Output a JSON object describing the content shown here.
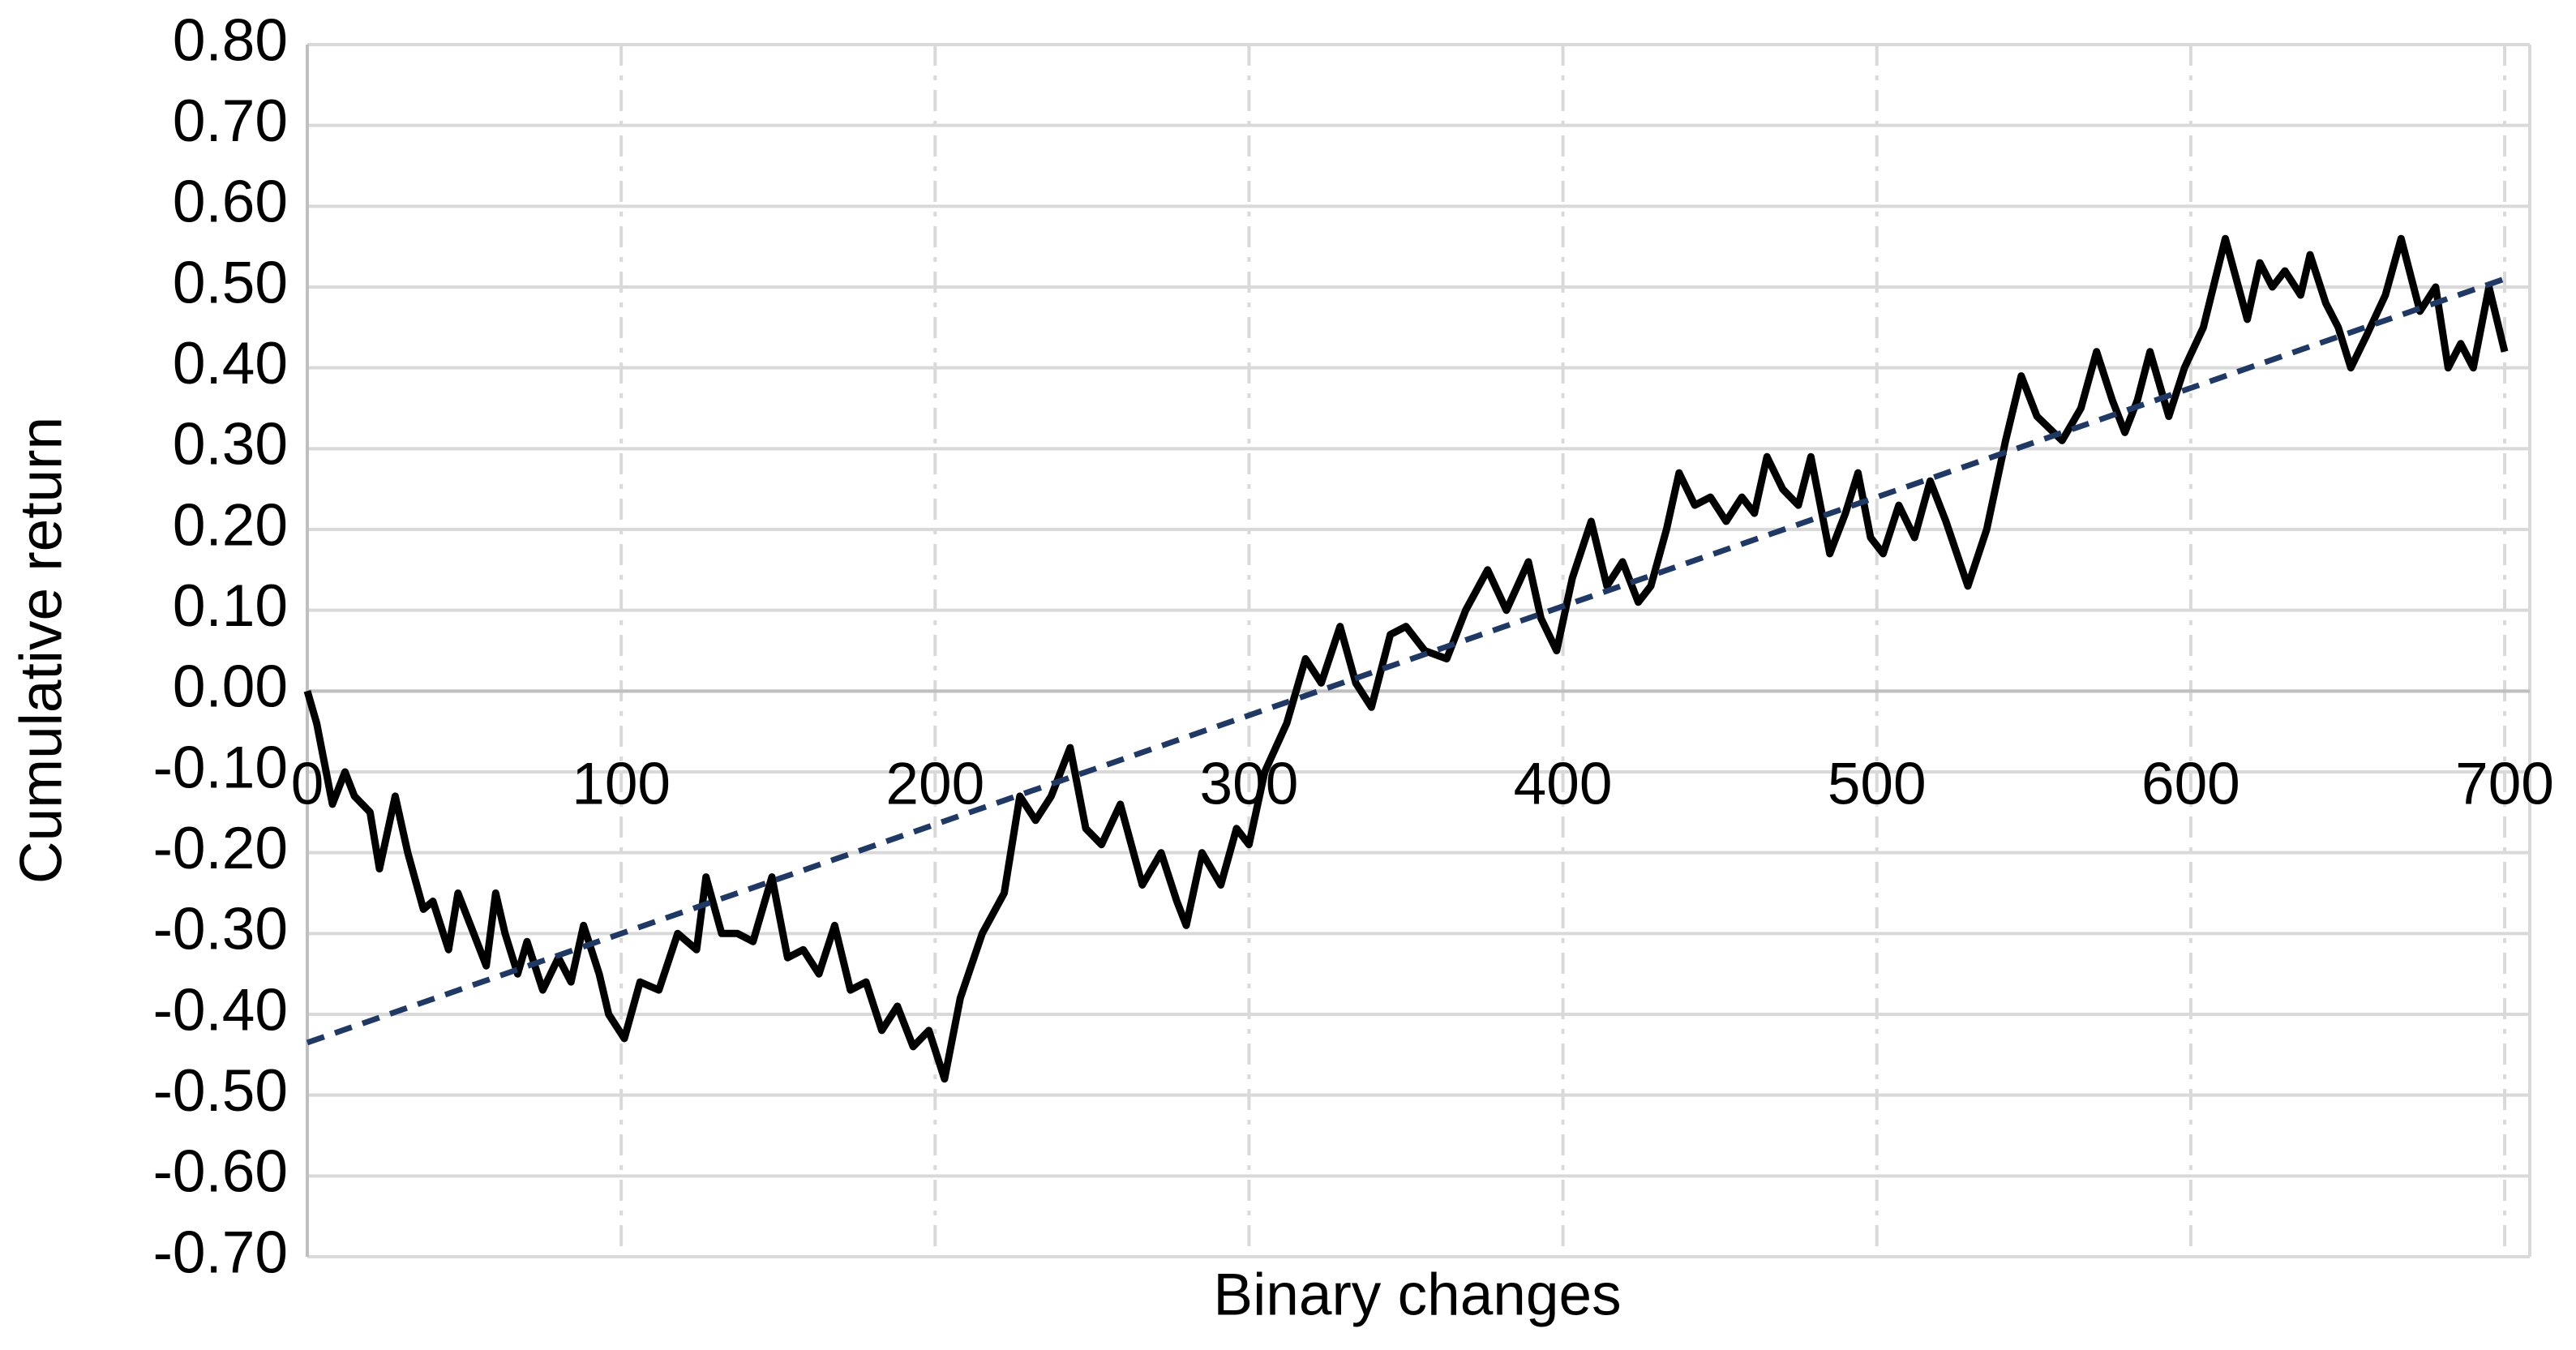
{
  "chart_data": {
    "type": "line",
    "x_label": "Binary changes",
    "y_label": "Cumulative return",
    "xlim": [
      0,
      708
    ],
    "ylim": [
      -0.7,
      0.8
    ],
    "xticks": [
      0,
      100,
      200,
      300,
      400,
      500,
      600,
      700
    ],
    "yticks": [
      {
        "value": 0.8,
        "label": "0.80"
      },
      {
        "value": 0.7,
        "label": "0.70"
      },
      {
        "value": 0.6,
        "label": "0.60"
      },
      {
        "value": 0.5,
        "label": "0.50"
      },
      {
        "value": 0.4,
        "label": "0.40"
      },
      {
        "value": 0.3,
        "label": "0.30"
      },
      {
        "value": 0.2,
        "label": "0.20"
      },
      {
        "value": 0.1,
        "label": "0.10"
      },
      {
        "value": 0,
        "label": "0.00"
      },
      {
        "value": -0.1,
        "label": "-0.10"
      },
      {
        "value": -0.2,
        "label": "-0.20"
      },
      {
        "value": -0.3,
        "label": "-0.30"
      },
      {
        "value": -0.4,
        "label": "-0.40"
      },
      {
        "value": -0.5,
        "label": "-0.50"
      },
      {
        "value": -0.6,
        "label": "-0.60"
      },
      {
        "value": -0.7,
        "label": "-0.70"
      }
    ],
    "grid": true,
    "series": [
      {
        "color": "#000000",
        "dashed": false,
        "x": [
          0,
          3,
          8,
          12,
          15,
          20,
          23,
          28,
          32,
          37,
          40,
          45,
          48,
          53,
          57,
          60,
          63,
          67,
          70,
          75,
          80,
          84,
          88,
          93,
          96,
          101,
          106,
          112,
          118,
          124,
          127,
          132,
          137,
          142,
          148,
          153,
          158,
          163,
          168,
          173,
          178,
          183,
          188,
          193,
          198,
          203,
          208,
          215,
          222,
          227,
          232,
          237,
          243,
          248,
          253,
          259,
          266,
          272,
          277,
          280,
          285,
          291,
          296,
          300,
          305,
          312,
          318,
          323,
          329,
          334,
          339,
          345,
          350,
          356,
          363,
          369,
          376,
          382,
          389,
          393,
          398,
          403,
          409,
          414,
          419,
          424,
          428,
          433,
          437,
          442,
          447,
          452,
          457,
          461,
          465,
          470,
          475,
          479,
          485,
          490,
          494,
          498,
          502,
          507,
          512,
          517,
          522,
          529,
          535,
          541,
          546,
          551,
          559,
          565,
          570,
          575,
          579,
          583,
          587,
          593,
          598,
          604,
          611,
          618,
          622,
          626,
          630,
          635,
          638,
          643,
          647,
          651,
          656,
          662,
          667,
          673,
          678,
          682,
          686,
          690,
          695,
          700
        ],
        "values": [
          0,
          -0.04,
          -0.14,
          -0.1,
          -0.13,
          -0.15,
          -0.22,
          -0.13,
          -0.2,
          -0.27,
          -0.26,
          -0.32,
          -0.25,
          -0.3,
          -0.34,
          -0.25,
          -0.3,
          -0.35,
          -0.31,
          -0.37,
          -0.33,
          -0.36,
          -0.29,
          -0.35,
          -0.4,
          -0.43,
          -0.36,
          -0.37,
          -0.3,
          -0.32,
          -0.23,
          -0.3,
          -0.3,
          -0.31,
          -0.23,
          -0.33,
          -0.32,
          -0.35,
          -0.29,
          -0.37,
          -0.36,
          -0.42,
          -0.39,
          -0.44,
          -0.42,
          -0.48,
          -0.38,
          -0.3,
          -0.25,
          -0.13,
          -0.16,
          -0.13,
          -0.07,
          -0.17,
          -0.19,
          -0.14,
          -0.24,
          -0.2,
          -0.26,
          -0.29,
          -0.2,
          -0.24,
          -0.17,
          -0.19,
          -0.1,
          -0.04,
          0.04,
          0.01,
          0.08,
          0.01,
          -0.02,
          0.07,
          0.08,
          0.05,
          0.04,
          0.1,
          0.15,
          0.1,
          0.16,
          0.09,
          0.05,
          0.14,
          0.21,
          0.13,
          0.16,
          0.11,
          0.13,
          0.2,
          0.27,
          0.23,
          0.24,
          0.21,
          0.24,
          0.22,
          0.29,
          0.25,
          0.23,
          0.29,
          0.17,
          0.22,
          0.27,
          0.19,
          0.17,
          0.23,
          0.19,
          0.26,
          0.21,
          0.13,
          0.2,
          0.31,
          0.39,
          0.34,
          0.31,
          0.35,
          0.42,
          0.36,
          0.32,
          0.36,
          0.42,
          0.34,
          0.4,
          0.45,
          0.56,
          0.46,
          0.53,
          0.5,
          0.52,
          0.49,
          0.54,
          0.48,
          0.45,
          0.4,
          0.44,
          0.49,
          0.56,
          0.47,
          0.5,
          0.4,
          0.43,
          0.4,
          0.5,
          0.42
        ]
      },
      {
        "color": "#1f3864",
        "dashed": true,
        "x": [
          0,
          700
        ],
        "values": [
          -0.435,
          0.51
        ]
      }
    ]
  }
}
